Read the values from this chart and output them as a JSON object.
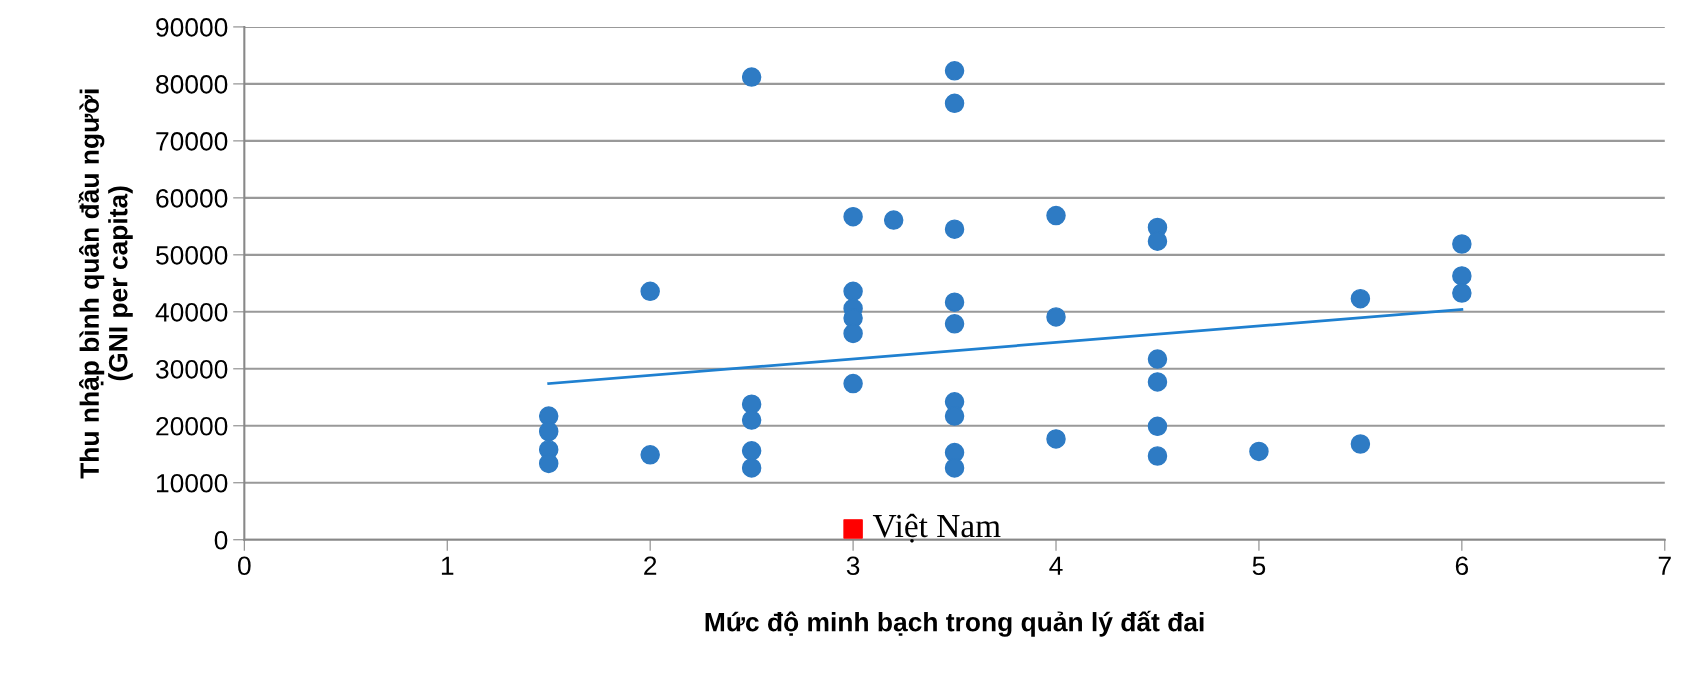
{
  "chart_data": {
    "type": "scatter",
    "xlabel": "Mức độ minh bạch trong quản lý đất đai",
    "ylabel": "Thu nhập bình quân đầu người\n(GNI per capita)",
    "xlim": [
      0,
      7
    ],
    "xticks": [
      0,
      1,
      2,
      3,
      4,
      5,
      6,
      7
    ],
    "ylim": [
      0,
      90000
    ],
    "yticks": [
      0,
      10000,
      20000,
      30000,
      40000,
      50000,
      60000,
      70000,
      80000,
      90000
    ],
    "grid": "y",
    "marker": "circle",
    "series": [
      {
        "color": "#2e7bc4",
        "x": [
          1.5,
          1.5,
          1.5,
          1.5,
          2,
          2,
          2.5,
          2.5,
          2.5,
          2.5,
          2.5,
          3,
          3,
          3,
          3,
          3,
          3,
          3.2,
          3.5,
          3.5,
          3.5,
          3.5,
          3.5,
          3.5,
          3.5,
          3.5,
          3.5,
          4,
          4,
          4,
          4.5,
          4.5,
          4.5,
          4.5,
          4.5,
          4.5,
          5,
          5.5,
          5.5,
          6,
          6,
          6
        ],
        "values": [
          21700,
          19000,
          15800,
          13400,
          43600,
          14900,
          81200,
          23800,
          21000,
          15600,
          12600,
          56700,
          43600,
          40600,
          38900,
          36200,
          27400,
          56100,
          82300,
          76600,
          54500,
          41700,
          37900,
          24200,
          21700,
          15300,
          12600,
          56900,
          39100,
          17700,
          54800,
          52400,
          31700,
          27700,
          19900,
          14700,
          15500,
          42300,
          16800,
          51900,
          46300,
          43300
        ]
      },
      {
        "type": "line",
        "color": "#1f80d0",
        "marker": "none",
        "x": [
          1.5,
          6
        ],
        "values": [
          27400,
          40400
        ]
      },
      {
        "color": "#ff0000",
        "marker": "square",
        "x": [
          3
        ],
        "values": [
          1900
        ]
      }
    ],
    "annotations": [
      {
        "text": "Việt Nam",
        "x": 3,
        "y": 1900
      }
    ]
  }
}
